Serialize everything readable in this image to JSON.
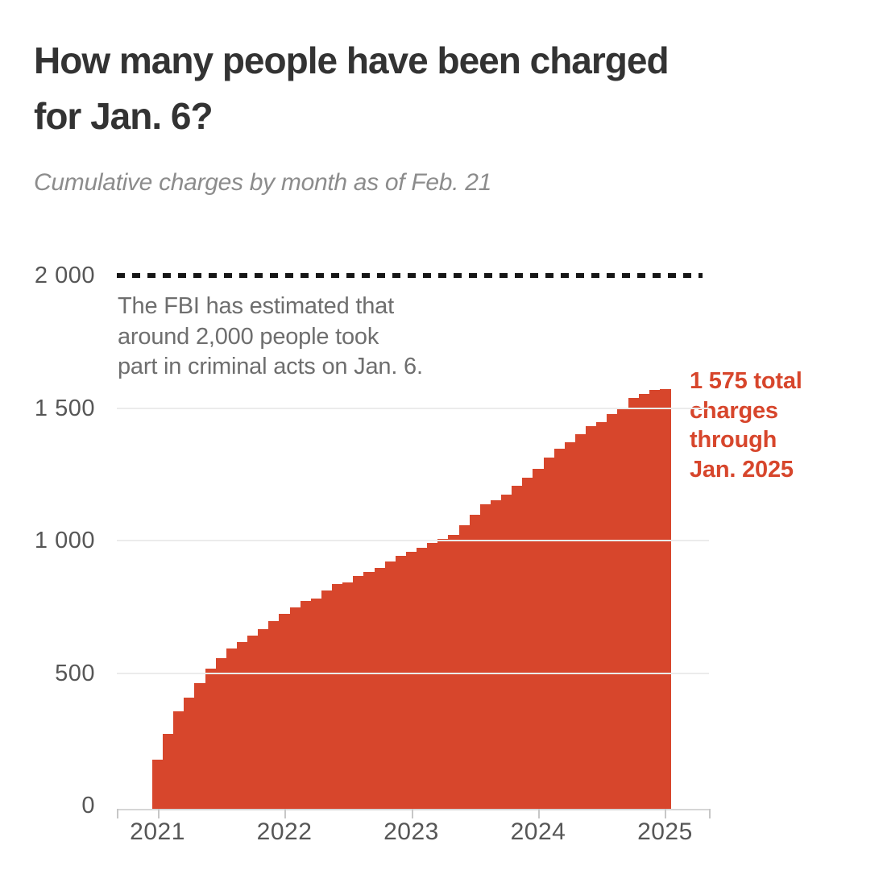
{
  "page": {
    "title_line1": "How many people have been charged",
    "title_line2": "for Jan. 6?",
    "subtitle": "Cumulative charges by month as of Feb. 21"
  },
  "annotations": {
    "fbi_note_lines": [
      "The FBI has estimated that",
      "around 2,000 people took",
      "part in criminal acts on Jan. 6."
    ],
    "total_label_lines": [
      "1 575 total",
      "charges",
      "through",
      "Jan. 2025"
    ]
  },
  "colors": {
    "bar": "#d7462c",
    "reference_line": "#161616",
    "grid": "#ebebeb",
    "axis": "#d6d6d6",
    "title": "#333333",
    "subtitle": "#8c8c8c",
    "note": "#6e6e6e",
    "tick_label": "#565656",
    "total_label": "#d7462c"
  },
  "chart_data": {
    "type": "bar",
    "title": "How many people have been charged for Jan. 6?",
    "subtitle": "Cumulative charges by month as of Feb. 21",
    "x_unit": "month",
    "months": [
      "Jan 2021",
      "Feb 2021",
      "Mar 2021",
      "Apr 2021",
      "May 2021",
      "Jun 2021",
      "Jul 2021",
      "Aug 2021",
      "Sep 2021",
      "Oct 2021",
      "Nov 2021",
      "Dec 2021",
      "Jan 2022",
      "Feb 2022",
      "Mar 2022",
      "Apr 2022",
      "May 2022",
      "Jun 2022",
      "Jul 2022",
      "Aug 2022",
      "Sep 2022",
      "Oct 2022",
      "Nov 2022",
      "Dec 2022",
      "Jan 2023",
      "Feb 2023",
      "Mar 2023",
      "Apr 2023",
      "May 2023",
      "Jun 2023",
      "Jul 2023",
      "Aug 2023",
      "Sep 2023",
      "Oct 2023",
      "Nov 2023",
      "Dec 2023",
      "Jan 2024",
      "Feb 2024",
      "Mar 2024",
      "Apr 2024",
      "May 2024",
      "Jun 2024",
      "Jul 2024",
      "Aug 2024",
      "Sep 2024",
      "Oct 2024",
      "Nov 2024",
      "Dec 2024",
      "Jan 2025"
    ],
    "values": [
      175,
      275,
      360,
      410,
      465,
      520,
      560,
      595,
      620,
      645,
      670,
      700,
      725,
      750,
      775,
      785,
      815,
      840,
      845,
      870,
      885,
      900,
      925,
      945,
      960,
      975,
      995,
      1010,
      1025,
      1060,
      1100,
      1140,
      1155,
      1175,
      1210,
      1240,
      1275,
      1315,
      1350,
      1375,
      1405,
      1435,
      1450,
      1480,
      1505,
      1540,
      1555,
      1570,
      1575
    ],
    "x_tick_labels": [
      "2021",
      "2022",
      "2023",
      "2024",
      "2025"
    ],
    "x_tick_month_indices": [
      0,
      12,
      24,
      36,
      48
    ],
    "y_tick_values": [
      0,
      500,
      1000,
      1500,
      2000
    ],
    "y_tick_labels": [
      "0",
      "500",
      "1 000",
      "1 500",
      "2 000"
    ],
    "ylim": [
      0,
      2000
    ],
    "grid": "horizontal",
    "legend": "none",
    "reference_line": {
      "value": 2000,
      "style": "dashed",
      "meaning": "FBI estimate that around 2,000 people took part in criminal acts on Jan. 6"
    },
    "final_value": 1575,
    "final_value_annotation": "1 575 total charges through Jan. 2025"
  }
}
